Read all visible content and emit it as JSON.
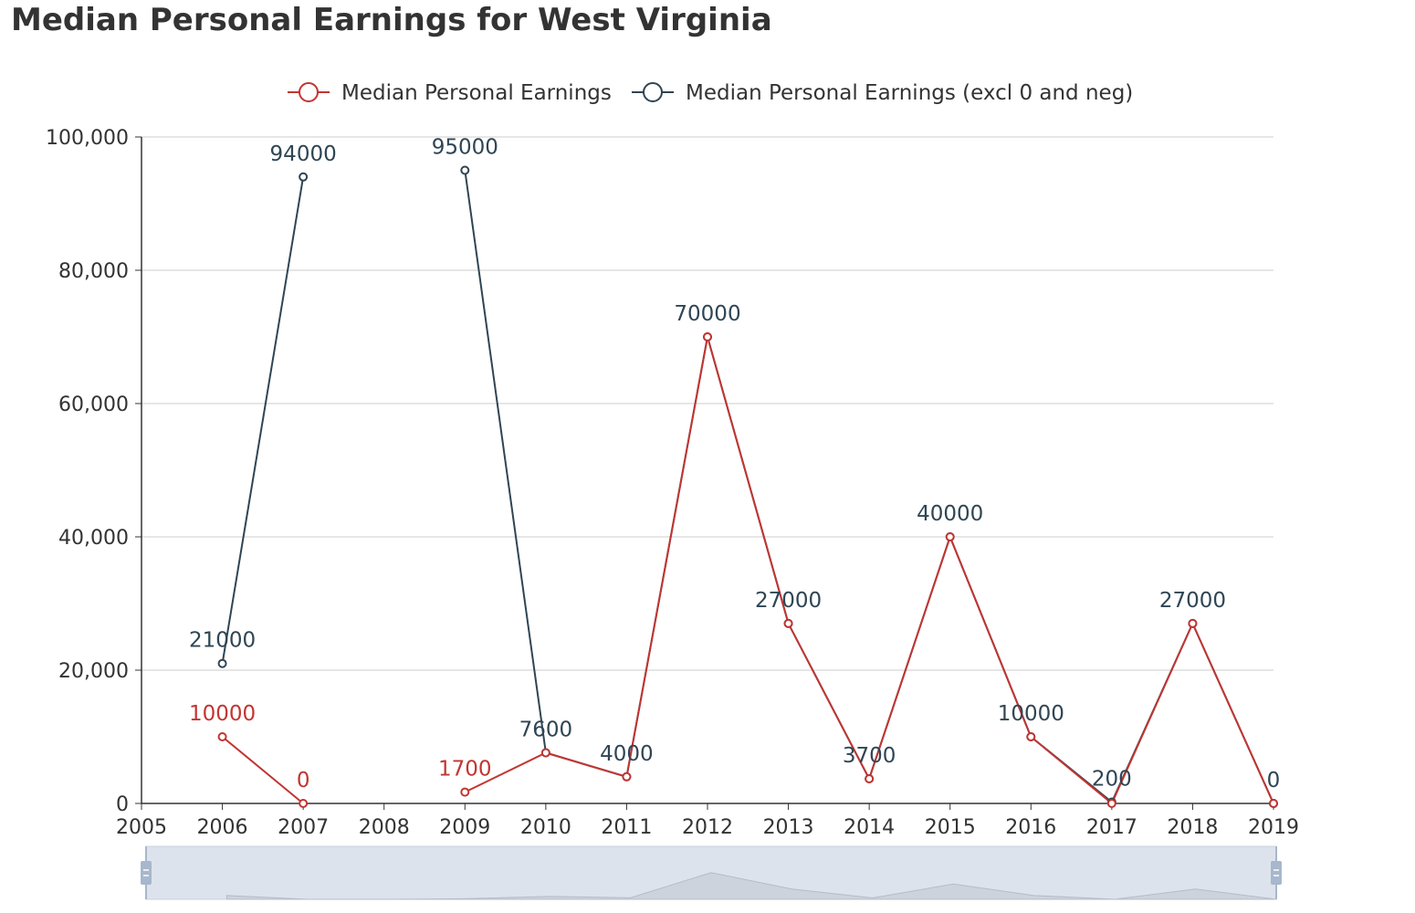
{
  "title": "Median Personal Earnings for West Virginia",
  "colors": {
    "series1": "#c23531",
    "series2": "#2f4554",
    "grid": "#cccccc",
    "axis": "#333333",
    "zoom_bg": "#dde3ed",
    "zoom_handle": "#a7b7cc",
    "zoom_line": "#b5bcc8",
    "zoom_area": "#cdd3dc"
  },
  "chart_data": {
    "type": "line",
    "title": "Median Personal Earnings for West Virginia",
    "xlim": [
      2005,
      2019
    ],
    "ylim": [
      0,
      100000
    ],
    "x_ticks": [
      "2005",
      "2006",
      "2007",
      "2008",
      "2009",
      "2010",
      "2011",
      "2012",
      "2013",
      "2014",
      "2015",
      "2016",
      "2017",
      "2018",
      "2019"
    ],
    "y_ticks": [
      0,
      20000,
      40000,
      60000,
      80000,
      100000
    ],
    "y_tick_labels": [
      "0",
      "20,000",
      "40,000",
      "60,000",
      "80,000",
      "100,000"
    ],
    "grid": true,
    "legend_position": "top-center",
    "series": [
      {
        "name": "Median Personal Earnings",
        "color": "#c23531",
        "points": [
          {
            "x": 2006,
            "y": 10000,
            "label": "10000"
          },
          {
            "x": 2007,
            "y": 0,
            "label": "0"
          },
          {
            "x": 2008,
            "y": null,
            "label": ""
          },
          {
            "x": 2009,
            "y": 1700,
            "label": "1700"
          },
          {
            "x": 2010,
            "y": 7600,
            "label": ""
          },
          {
            "x": 2011,
            "y": 4000,
            "label": ""
          },
          {
            "x": 2012,
            "y": 70000,
            "label": ""
          },
          {
            "x": 2013,
            "y": 27000,
            "label": ""
          },
          {
            "x": 2014,
            "y": 3700,
            "label": ""
          },
          {
            "x": 2015,
            "y": 40000,
            "label": ""
          },
          {
            "x": 2016,
            "y": 10000,
            "label": ""
          },
          {
            "x": 2017,
            "y": 0,
            "label": ""
          },
          {
            "x": 2018,
            "y": 27000,
            "label": ""
          },
          {
            "x": 2019,
            "y": 0,
            "label": ""
          }
        ]
      },
      {
        "name": "Median Personal Earnings (excl 0 and neg)",
        "color": "#2f4554",
        "points": [
          {
            "x": 2006,
            "y": 21000,
            "label": "21000"
          },
          {
            "x": 2007,
            "y": 94000,
            "label": "94000"
          },
          {
            "x": 2008,
            "y": null,
            "label": ""
          },
          {
            "x": 2009,
            "y": 95000,
            "label": "95000"
          },
          {
            "x": 2010,
            "y": 7600,
            "label": "7600"
          },
          {
            "x": 2011,
            "y": 4000,
            "label": "4000"
          },
          {
            "x": 2012,
            "y": 70000,
            "label": "70000"
          },
          {
            "x": 2013,
            "y": 27000,
            "label": "27000"
          },
          {
            "x": 2014,
            "y": 3700,
            "label": "3700"
          },
          {
            "x": 2015,
            "y": 40000,
            "label": "40000"
          },
          {
            "x": 2016,
            "y": 10000,
            "label": "10000"
          },
          {
            "x": 2017,
            "y": 200,
            "label": "200"
          },
          {
            "x": 2018,
            "y": 27000,
            "label": "27000"
          },
          {
            "x": 2019,
            "y": 0,
            "label": "0"
          }
        ]
      }
    ],
    "data_zoom": {
      "start": 2005,
      "end": 2019
    }
  }
}
